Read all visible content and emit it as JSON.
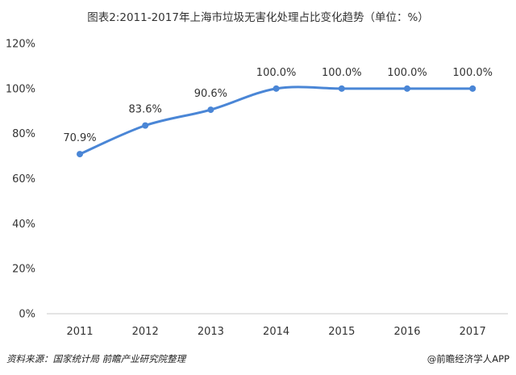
{
  "title": "图表2:2011-2017年上海市垃圾无害化处理占比变化趋势（单位：%）",
  "source": "资料来源：国家统计局  前瞻产业研究院整理",
  "brand": "@前瞻经济学人APP",
  "colors": {
    "line": "#4a86d6",
    "axis": "#c8c8c8",
    "text": "#333333"
  },
  "chart_data": {
    "type": "line",
    "title": "图表2:2011-2017年上海市垃圾无害化处理占比变化趋势（单位：%）",
    "categories": [
      "2011",
      "2012",
      "2013",
      "2014",
      "2015",
      "2016",
      "2017"
    ],
    "series": [
      {
        "values": [
          70.9,
          83.6,
          90.6,
          100.0,
          100.0,
          100.0,
          100.0
        ]
      }
    ],
    "data_labels": [
      "70.9%",
      "83.6%",
      "90.6%",
      "100.0%",
      "100.0%",
      "100.0%",
      "100.0%"
    ],
    "yticks": [
      "0%",
      "20%",
      "40%",
      "60%",
      "80%",
      "100%",
      "120%"
    ],
    "ylim": [
      0,
      120
    ],
    "grid": false,
    "smooth": true
  }
}
